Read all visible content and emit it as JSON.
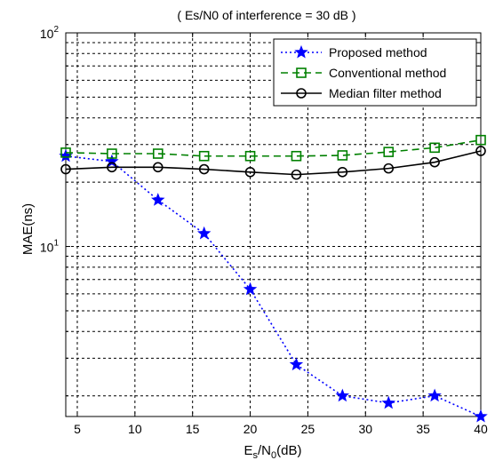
{
  "chart_data": {
    "type": "line",
    "title": "( Es/N0 of interference = 30 dB )",
    "xlabel": {
      "main": "E",
      "sub1": "s",
      "mid": "/N",
      "sub2": "0",
      "tail": "(dB)"
    },
    "ylabel": "MAE(ns)",
    "xlim": [
      4,
      40
    ],
    "ylim": [
      1.6,
      100
    ],
    "yscale": "log",
    "grid": true,
    "legend_position": "top-right",
    "x_ticks": [
      5,
      10,
      15,
      20,
      25,
      30,
      35,
      40
    ],
    "x_tick_labels": [
      "5",
      "10",
      "15",
      "20",
      "25",
      "30",
      "35",
      "40"
    ],
    "y_ticks": [
      {
        "value": 100,
        "base": "10",
        "exp": "2"
      },
      {
        "value": 10,
        "base": "10",
        "exp": "1"
      }
    ],
    "x": [
      4,
      8,
      12,
      16,
      20,
      24,
      28,
      32,
      36,
      40
    ],
    "series": [
      {
        "name": "Proposed method",
        "color": "#0000ff",
        "marker": "star",
        "line_style": "dotted",
        "values": [
          26.5,
          25.0,
          16.5,
          11.5,
          6.3,
          2.8,
          2.0,
          1.85,
          2.0,
          1.6
        ]
      },
      {
        "name": "Conventional method",
        "color": "#008000",
        "marker": "square",
        "line_style": "dashed",
        "values": [
          27.5,
          27.2,
          27.2,
          26.5,
          26.5,
          26.5,
          26.7,
          27.7,
          29.0,
          31.5
        ]
      },
      {
        "name": "Median filter method",
        "color": "#000000",
        "marker": "circle",
        "line_style": "solid",
        "values": [
          23.0,
          23.5,
          23.5,
          23.0,
          22.3,
          21.7,
          22.3,
          23.2,
          24.8,
          28.0
        ]
      }
    ]
  }
}
